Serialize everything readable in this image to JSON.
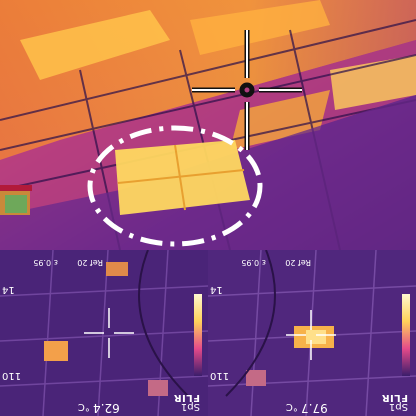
{
  "top_view": {
    "crosshair_icon": "crosshair-icon",
    "highlight_shape": "dashed-ellipse"
  },
  "left_thermal": {
    "logo": "FLIR",
    "spot_label": "Sp1",
    "spot_value": "62.4",
    "unit": "°C",
    "scale_max": "110",
    "scale_min": "14",
    "param_top": "ε 0.95",
    "param_mid": "Ref 20"
  },
  "right_thermal": {
    "logo": "FLIR",
    "spot_label": "Sp1",
    "spot_value": "97.7",
    "unit": "°C",
    "scale_max": "110",
    "scale_min": "14",
    "param_top": "ε 0.95",
    "param_mid": "Ref 20"
  },
  "colors": {
    "palette_hot": "#ffd25a",
    "palette_mid": "#e44a8a",
    "palette_cold": "#3b1d6b",
    "overlay": "#ffffff"
  }
}
